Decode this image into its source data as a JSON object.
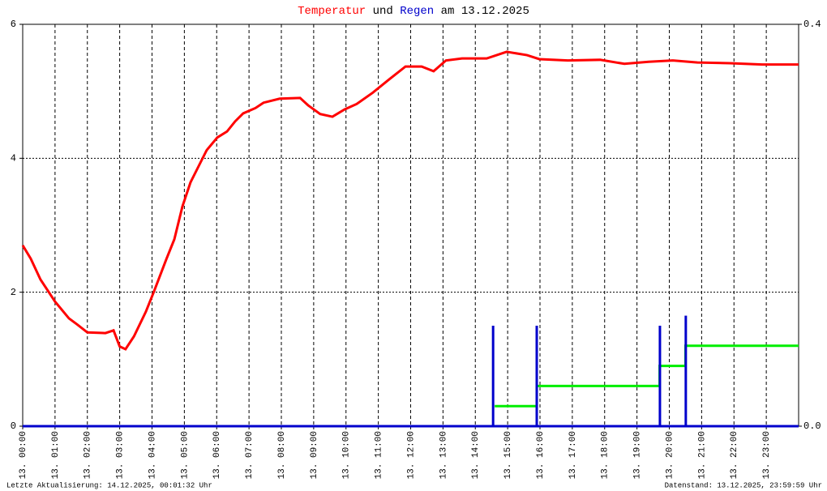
{
  "chart_data": {
    "type": "line",
    "title_words": [
      "und",
      "am 13.12.2025"
    ],
    "xlim": [
      0,
      24
    ],
    "xticks": [
      {
        "value": 0,
        "label": "13. 00:00"
      },
      {
        "value": 1,
        "label": "13. 01:00"
      },
      {
        "value": 2,
        "label": "13. 02:00"
      },
      {
        "value": 3,
        "label": "13. 03:00"
      },
      {
        "value": 4,
        "label": "13. 04:00"
      },
      {
        "value": 5,
        "label": "13. 05:00"
      },
      {
        "value": 6,
        "label": "13. 06:00"
      },
      {
        "value": 7,
        "label": "13. 07:00"
      },
      {
        "value": 8,
        "label": "13. 08:00"
      },
      {
        "value": 9,
        "label": "13. 09:00"
      },
      {
        "value": 10,
        "label": "13. 10:00"
      },
      {
        "value": 11,
        "label": "13. 11:00"
      },
      {
        "value": 12,
        "label": "13. 12:00"
      },
      {
        "value": 13,
        "label": "13. 13:00"
      },
      {
        "value": 14,
        "label": "13. 14:00"
      },
      {
        "value": 15,
        "label": "13. 15:00"
      },
      {
        "value": 16,
        "label": "13. 16:00"
      },
      {
        "value": 17,
        "label": "13. 17:00"
      },
      {
        "value": 18,
        "label": "13. 18:00"
      },
      {
        "value": 19,
        "label": "13. 19:00"
      },
      {
        "value": 20,
        "label": "13. 20:00"
      },
      {
        "value": 21,
        "label": "13. 21:00"
      },
      {
        "value": 22,
        "label": "13. 22:00"
      },
      {
        "value": 23,
        "label": "13. 23:00"
      }
    ],
    "ylim": [
      0,
      6
    ],
    "yticks": [
      0,
      2,
      4,
      6
    ],
    "y2lim": [
      0,
      0.4
    ],
    "y2ticks": [
      {
        "value": 0,
        "label": "0.0"
      },
      0.4
    ],
    "grid": true,
    "series": [
      {
        "name": "Temperatur",
        "color": "#ff0000",
        "kind": "line",
        "x": [
          0,
          0.25,
          0.55,
          1.0,
          1.43,
          1.68,
          2.0,
          2.56,
          2.81,
          3.0,
          3.18,
          3.44,
          3.81,
          4.06,
          4.44,
          4.69,
          4.94,
          5.19,
          5.44,
          5.69,
          6.02,
          6.32,
          6.57,
          6.82,
          7.2,
          7.45,
          7.95,
          8.58,
          8.83,
          9.2,
          9.58,
          9.96,
          10.33,
          10.83,
          11.34,
          11.84,
          12.34,
          12.71,
          13.09,
          13.59,
          14.35,
          14.97,
          15.6,
          15.98,
          16.86,
          17.86,
          18.61,
          19.36,
          20.11,
          20.87,
          21.87,
          22.87,
          24.0
        ],
        "values": [
          2.7,
          2.5,
          2.19,
          1.86,
          1.61,
          1.52,
          1.4,
          1.39,
          1.43,
          1.19,
          1.15,
          1.34,
          1.71,
          2.01,
          2.49,
          2.79,
          3.28,
          3.64,
          3.88,
          4.12,
          4.31,
          4.4,
          4.55,
          4.67,
          4.75,
          4.83,
          4.89,
          4.9,
          4.79,
          4.66,
          4.62,
          4.73,
          4.81,
          4.98,
          5.18,
          5.37,
          5.37,
          5.3,
          5.46,
          5.49,
          5.49,
          5.59,
          5.54,
          5.48,
          5.46,
          5.47,
          5.41,
          5.44,
          5.46,
          5.43,
          5.42,
          5.4,
          5.4
        ]
      },
      {
        "color": "#00ee00",
        "kind": "line",
        "axis": "y2",
        "x": [
          14.6,
          15.9,
          15.9,
          19.7,
          19.7,
          20.5,
          20.5,
          24
        ],
        "values": [
          0.02,
          0.02,
          0.04,
          0.04,
          0.06,
          0.06,
          0.08,
          0.08
        ]
      },
      {
        "name": "Regen",
        "color": "#0000cc",
        "kind": "bar",
        "axis": "y2",
        "x": [
          14.55,
          15.9,
          19.71,
          20.51
        ],
        "values": [
          0.1,
          0.1,
          0.1,
          0.11
        ]
      }
    ],
    "footer_left": "Letzte Aktualisierung: 14.12.2025, 00:01:32 Uhr",
    "footer_right": "Datenstand: 13.12.2025, 23:59:59 Uhr"
  }
}
